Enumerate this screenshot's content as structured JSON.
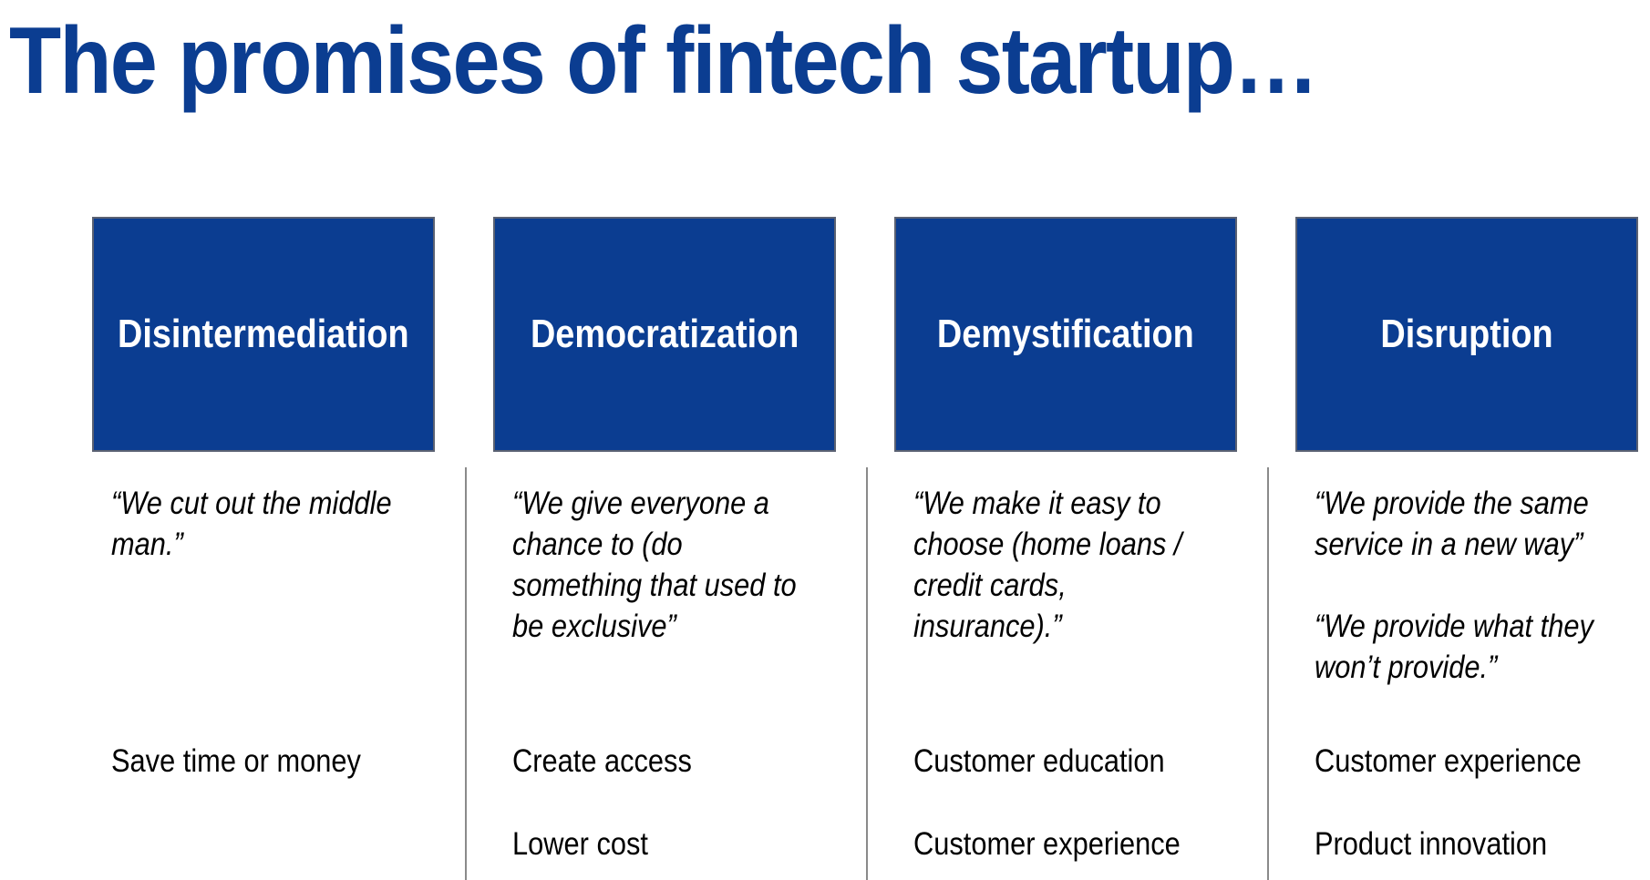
{
  "title": "The promises of fintech startup…",
  "colors": {
    "accent": "#0b3d91",
    "box_border": "#5a6172",
    "divider": "#8a8a8a"
  },
  "columns": [
    {
      "heading": "Disintermediation",
      "quotes": [
        "“We cut out the middle\nman.”"
      ],
      "points": [
        "Save time or money"
      ]
    },
    {
      "heading": "Democratization",
      "quotes": [
        "“We give everyone a\nchance to (do\nsomething that used to\nbe exclusive”"
      ],
      "points": [
        "Create access",
        "Lower cost"
      ]
    },
    {
      "heading": "Demystification",
      "quotes": [
        "“We make it easy to\nchoose (home loans /\ncredit cards,\ninsurance).”"
      ],
      "points": [
        "Customer education",
        "Customer experience"
      ]
    },
    {
      "heading": "Disruption",
      "quotes": [
        "“We provide the same\nservice in a new way”",
        "“We provide what they\nwon’t provide.”"
      ],
      "points": [
        "Customer experience",
        "Product innovation"
      ]
    }
  ]
}
